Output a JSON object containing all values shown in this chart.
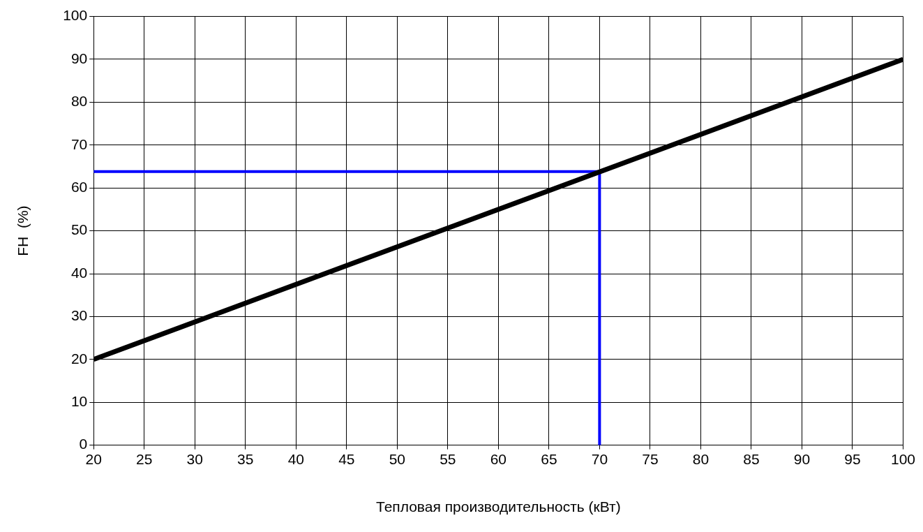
{
  "chart_data": {
    "type": "line",
    "xlabel": "Тепловая производительность (кВт)",
    "ylabel": "FH  (%)",
    "xlim": [
      20,
      100
    ],
    "xticks": [
      20,
      25,
      30,
      35,
      40,
      45,
      50,
      55,
      60,
      65,
      70,
      75,
      80,
      85,
      90,
      95,
      100
    ],
    "ylim": [
      0,
      100
    ],
    "yticks": [
      0,
      10,
      20,
      30,
      40,
      50,
      60,
      70,
      80,
      90,
      100
    ],
    "grid": true,
    "legend": false,
    "marker": "none",
    "line_style": "solid",
    "series": [
      {
        "color": "#000000",
        "x": [
          20,
          100
        ],
        "values": [
          20,
          90
        ]
      },
      {
        "color": "#0000ff",
        "x": [
          20,
          70,
          70
        ],
        "values": [
          63.8,
          63.8,
          0
        ]
      }
    ]
  }
}
